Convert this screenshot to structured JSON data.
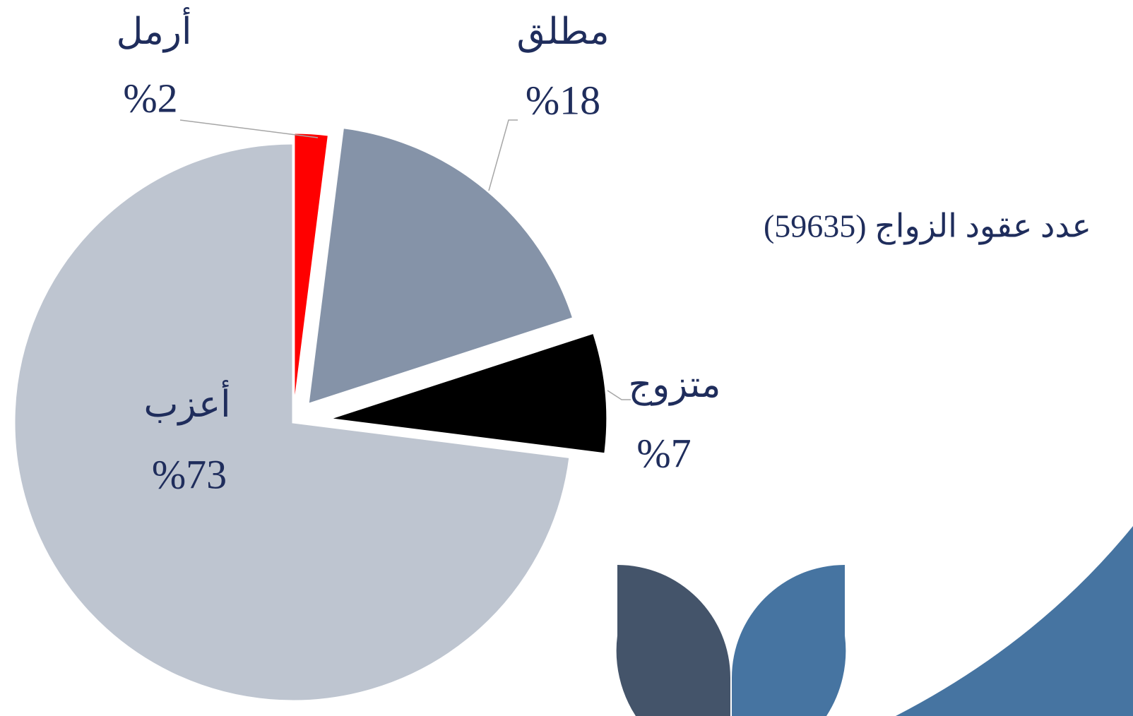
{
  "chart_data": {
    "type": "pie",
    "title": "عدد عقود الزواج (59635)",
    "categories": [
      "أرمل",
      "مطلق",
      "متزوج",
      "أعزب"
    ],
    "values": [
      2,
      18,
      7,
      73
    ],
    "value_labels": [
      "%2",
      "%18",
      "%7",
      "%73"
    ],
    "colors": [
      "#ff0000",
      "#8593a8",
      "#000000",
      "#bec5d0"
    ]
  }
}
